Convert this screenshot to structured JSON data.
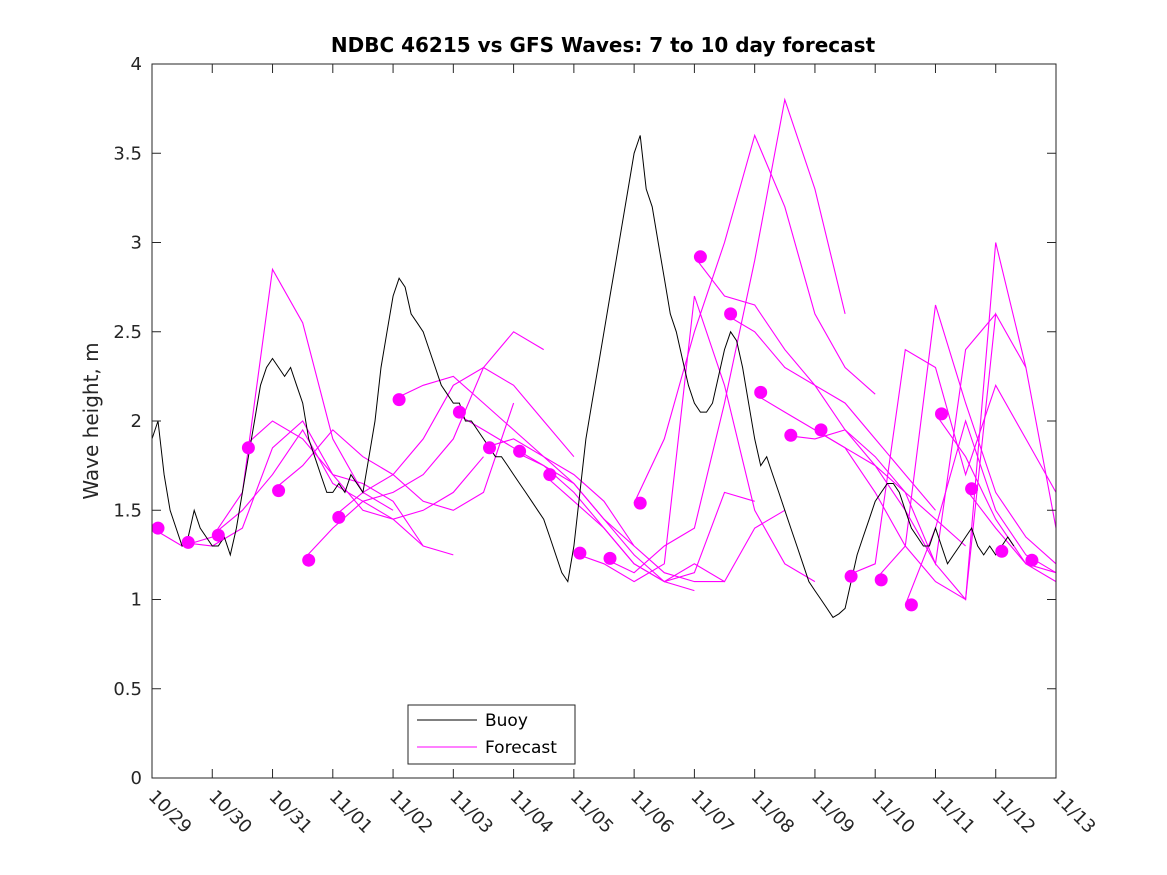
{
  "chart_data": {
    "type": "line",
    "title": "NDBC 46215 vs GFS Waves: 7 to 10 day forecast",
    "xlabel": "",
    "ylabel": "Wave height, m",
    "xlim": [
      0,
      15
    ],
    "ylim": [
      0,
      4
    ],
    "x_unit": "days since 10/29",
    "x_tick_values": [
      0,
      1,
      2,
      3,
      4,
      5,
      6,
      7,
      8,
      9,
      10,
      11,
      12,
      13,
      14,
      15
    ],
    "x_tick_labels": [
      "10/29",
      "10/30",
      "10/31",
      "11/01",
      "11/02",
      "11/03",
      "11/04",
      "11/05",
      "11/06",
      "11/07",
      "11/08",
      "11/09",
      "11/10",
      "11/11",
      "11/12",
      "11/13"
    ],
    "y_tick_values": [
      0,
      0.5,
      1,
      1.5,
      2,
      2.5,
      3,
      3.5,
      4
    ],
    "y_tick_labels": [
      "0",
      "0.5",
      "1",
      "1.5",
      "2",
      "2.5",
      "3",
      "3.5",
      "4"
    ],
    "legend": {
      "position": "bottom-center",
      "entries": [
        {
          "label": "Buoy",
          "color": "#000000"
        },
        {
          "label": "Forecast",
          "color": "#ff00ff"
        }
      ]
    },
    "series": [
      {
        "name": "Buoy",
        "color": "#000000",
        "x": [
          0,
          0.1,
          0.2,
          0.3,
          0.4,
          0.5,
          0.6,
          0.7,
          0.8,
          0.9,
          1.0,
          1.1,
          1.2,
          1.3,
          1.4,
          1.5,
          1.6,
          1.7,
          1.8,
          1.9,
          2.0,
          2.1,
          2.2,
          2.3,
          2.4,
          2.5,
          2.6,
          2.7,
          2.8,
          2.9,
          3.0,
          3.1,
          3.2,
          3.3,
          3.4,
          3.5,
          3.6,
          3.7,
          3.8,
          3.9,
          4.0,
          4.1,
          4.2,
          4.3,
          4.4,
          4.5,
          4.6,
          4.7,
          4.8,
          4.9,
          5.0,
          5.1,
          5.2,
          5.3,
          5.4,
          5.5,
          5.6,
          5.7,
          5.8,
          5.9,
          6.0,
          6.1,
          6.2,
          6.3,
          6.4,
          6.5,
          6.6,
          6.7,
          6.8,
          6.9,
          7.0,
          7.1,
          7.2,
          7.3,
          7.4,
          7.5,
          7.6,
          7.7,
          7.8,
          7.9,
          8.0,
          8.1,
          8.2,
          8.3,
          8.4,
          8.5,
          8.6,
          8.7,
          8.8,
          8.9,
          9.0,
          9.1,
          9.2,
          9.3,
          9.4,
          9.5,
          9.6,
          9.7,
          9.8,
          9.9,
          10.0,
          10.1,
          10.2,
          10.3,
          10.4,
          10.5,
          10.6,
          10.7,
          10.8,
          10.9,
          11.0,
          11.1,
          11.2,
          11.3,
          11.4,
          11.5,
          11.6,
          11.7,
          11.8,
          11.9,
          12.0,
          12.1,
          12.2,
          12.3,
          12.4,
          12.5,
          12.6,
          12.7,
          12.8,
          12.9,
          13.0,
          13.1,
          13.2,
          13.3,
          13.4,
          13.5,
          13.6,
          13.7,
          13.8,
          13.9,
          14.0,
          14.1,
          14.2,
          14.3
        ],
        "values": [
          1.9,
          2.0,
          1.7,
          1.5,
          1.4,
          1.3,
          1.35,
          1.5,
          1.4,
          1.35,
          1.3,
          1.3,
          1.35,
          1.25,
          1.4,
          1.6,
          1.8,
          2.0,
          2.2,
          2.3,
          2.35,
          2.3,
          2.25,
          2.3,
          2.2,
          2.1,
          1.9,
          1.8,
          1.7,
          1.6,
          1.6,
          1.65,
          1.6,
          1.7,
          1.65,
          1.6,
          1.8,
          2.0,
          2.3,
          2.5,
          2.7,
          2.8,
          2.75,
          2.6,
          2.55,
          2.5,
          2.4,
          2.3,
          2.2,
          2.15,
          2.1,
          2.1,
          2.0,
          2.0,
          1.95,
          1.9,
          1.85,
          1.8,
          1.8,
          1.75,
          1.7,
          1.65,
          1.6,
          1.55,
          1.5,
          1.45,
          1.35,
          1.25,
          1.15,
          1.1,
          1.3,
          1.6,
          1.9,
          2.1,
          2.3,
          2.5,
          2.7,
          2.9,
          3.1,
          3.3,
          3.5,
          3.6,
          3.3,
          3.2,
          3.0,
          2.8,
          2.6,
          2.5,
          2.35,
          2.2,
          2.1,
          2.05,
          2.05,
          2.1,
          2.25,
          2.4,
          2.5,
          2.45,
          2.3,
          2.1,
          1.9,
          1.75,
          1.8,
          1.7,
          1.6,
          1.5,
          1.4,
          1.3,
          1.2,
          1.1,
          1.05,
          1.0,
          0.95,
          0.9,
          0.92,
          0.95,
          1.1,
          1.25,
          1.35,
          1.45,
          1.55,
          1.6,
          1.65,
          1.65,
          1.6,
          1.5,
          1.4,
          1.35,
          1.3,
          1.3,
          1.4,
          1.3,
          1.2,
          1.25,
          1.3,
          1.35,
          1.4,
          1.3,
          1.25,
          1.3,
          1.25,
          1.3,
          1.35,
          1.3
        ]
      },
      {
        "name": "Forecast",
        "color": "#ff00ff",
        "lines": [
          {
            "x": [
              0,
              0.5,
              1.0,
              1.5,
              2.0,
              2.5,
              3.0,
              3.5,
              4.0
            ],
            "values": [
              1.4,
              1.3,
              1.35,
              1.6,
              2.85,
              2.55,
              1.9,
              1.6,
              1.5
            ]
          },
          {
            "x": [
              0.5,
              1.0,
              1.5,
              2.0,
              2.5,
              3.0,
              3.5,
              4.0,
              4.5
            ],
            "values": [
              1.32,
              1.3,
              1.4,
              1.85,
              2.0,
              1.7,
              1.65,
              1.55,
              1.3
            ]
          },
          {
            "x": [
              1.0,
              1.5,
              2.0,
              2.5,
              3.0,
              3.5,
              4.0,
              4.5,
              5.0
            ],
            "values": [
              1.36,
              1.5,
              1.7,
              1.95,
              1.65,
              1.55,
              1.45,
              1.3,
              1.25
            ]
          },
          {
            "x": [
              1.5,
              2.0,
              2.5,
              3.0,
              3.5,
              4.0,
              4.5,
              5.0,
              5.5
            ],
            "values": [
              1.85,
              2.0,
              1.9,
              1.7,
              1.5,
              1.45,
              1.5,
              1.6,
              1.8
            ]
          },
          {
            "x": [
              2.0,
              2.5,
              3.0,
              3.5,
              4.0,
              4.5,
              5.0,
              5.5,
              6.0
            ],
            "values": [
              1.61,
              1.75,
              1.95,
              1.8,
              1.7,
              1.55,
              1.5,
              1.6,
              2.1
            ]
          },
          {
            "x": [
              2.5,
              3.0,
              3.5,
              4.0,
              4.5,
              5.0,
              5.5,
              6.0,
              6.5
            ],
            "values": [
              1.22,
              1.4,
              1.55,
              1.6,
              1.7,
              1.9,
              2.3,
              2.5,
              2.4
            ]
          },
          {
            "x": [
              3.0,
              3.5,
              4.0,
              4.5,
              5.0,
              5.5,
              6.0,
              6.5,
              7.0
            ],
            "values": [
              1.46,
              1.6,
              1.7,
              1.9,
              2.2,
              2.3,
              2.2,
              2.0,
              1.8
            ]
          },
          {
            "x": [
              4.0,
              4.5,
              5.0,
              5.5,
              6.0,
              6.5,
              7.0,
              7.5,
              8.0
            ],
            "values": [
              2.12,
              2.2,
              2.25,
              2.1,
              1.95,
              1.8,
              1.7,
              1.55,
              1.3
            ]
          },
          {
            "x": [
              5.0,
              5.5,
              6.0,
              6.5,
              7.0,
              7.5,
              8.0,
              8.5,
              9.0
            ],
            "values": [
              2.05,
              1.95,
              1.85,
              1.75,
              1.6,
              1.4,
              1.2,
              1.1,
              1.05
            ]
          },
          {
            "x": [
              5.5,
              6.0,
              6.5,
              7.0,
              7.5,
              8.0,
              8.5,
              9.0,
              9.5
            ],
            "values": [
              1.85,
              1.9,
              1.8,
              1.65,
              1.45,
              1.3,
              1.15,
              1.1,
              1.1
            ]
          },
          {
            "x": [
              6.0,
              6.5,
              7.0,
              7.5,
              8.0,
              8.5,
              9.0,
              9.5,
              10.0
            ],
            "values": [
              1.83,
              1.75,
              1.65,
              1.45,
              1.25,
              1.1,
              1.15,
              1.6,
              1.55
            ]
          },
          {
            "x": [
              6.5,
              7.0,
              7.5,
              8.0,
              8.5,
              9.0,
              9.5,
              10.0,
              10.5
            ],
            "values": [
              1.7,
              1.55,
              1.4,
              1.2,
              1.1,
              1.2,
              1.1,
              1.4,
              1.5
            ]
          },
          {
            "x": [
              7.0,
              7.5,
              8.0,
              8.5,
              9.0,
              9.5,
              10.0,
              10.5,
              11.0
            ],
            "values": [
              1.26,
              1.2,
              1.1,
              1.2,
              2.7,
              2.2,
              1.5,
              1.2,
              1.1
            ]
          },
          {
            "x": [
              7.5,
              8.0,
              8.5,
              9.0,
              9.5,
              10.0,
              10.5,
              11.0,
              11.5
            ],
            "values": [
              1.23,
              1.15,
              1.3,
              1.4,
              2.1,
              2.9,
              3.8,
              3.3,
              2.6
            ]
          },
          {
            "x": [
              8.0,
              8.5,
              9.0,
              9.5,
              10.0,
              10.5,
              11.0,
              11.5,
              12.0
            ],
            "values": [
              1.54,
              1.9,
              2.5,
              3.0,
              3.6,
              3.2,
              2.6,
              2.3,
              2.15
            ]
          },
          {
            "x": [
              9.0,
              9.5,
              10.0,
              10.5,
              11.0,
              11.5,
              12.0,
              12.5,
              13.0
            ],
            "values": [
              2.92,
              2.7,
              2.65,
              2.4,
              2.2,
              2.1,
              1.9,
              1.7,
              1.5
            ]
          },
          {
            "x": [
              9.5,
              10.0,
              10.5,
              11.0,
              11.5,
              12.0,
              12.5,
              13.0,
              13.5
            ],
            "values": [
              2.6,
              2.5,
              2.3,
              2.2,
              1.95,
              1.8,
              1.6,
              1.45,
              1.3
            ]
          },
          {
            "x": [
              10.0,
              10.5,
              11.0,
              11.5,
              12.0,
              12.5,
              13.0,
              13.5,
              14.0
            ],
            "values": [
              2.15,
              2.05,
              1.95,
              1.85,
              1.75,
              1.6,
              1.2,
              2.4,
              2.6
            ]
          },
          {
            "x": [
              10.5,
              11.0,
              11.5,
              12.0,
              12.5,
              13.0,
              13.5,
              14.0,
              14.5
            ],
            "values": [
              1.92,
              1.9,
              1.95,
              1.75,
              1.5,
              1.2,
              1.0,
              2.6,
              2.3
            ]
          },
          {
            "x": [
              11.0,
              11.5,
              12.0,
              12.5,
              13.0,
              13.5,
              14.0,
              14.5,
              15.0
            ],
            "values": [
              1.95,
              1.85,
              1.6,
              1.3,
              1.1,
              1.0,
              3.0,
              2.3,
              1.4
            ]
          },
          {
            "x": [
              11.5,
              12.0,
              12.5,
              13.0,
              13.5,
              14.0,
              14.5,
              15.0
            ],
            "values": [
              1.13,
              1.2,
              2.4,
              2.3,
              1.7,
              2.2,
              1.9,
              1.6
            ]
          },
          {
            "x": [
              12.0,
              12.5,
              13.0,
              13.5,
              14.0,
              14.5,
              15.0
            ],
            "values": [
              1.11,
              1.3,
              2.65,
              2.1,
              1.6,
              1.35,
              1.2
            ]
          },
          {
            "x": [
              12.5,
              13.0,
              13.5,
              14.0,
              14.5,
              15.0
            ],
            "values": [
              0.97,
              1.4,
              2.0,
              1.5,
              1.25,
              1.15
            ]
          },
          {
            "x": [
              13.0,
              13.5,
              14.0,
              14.5,
              15.0
            ],
            "values": [
              2.04,
              1.8,
              1.45,
              1.2,
              1.1
            ]
          },
          {
            "x": [
              13.5,
              14.0,
              14.5,
              15.0
            ],
            "values": [
              1.62,
              1.4,
              1.2,
              1.15
            ]
          }
        ],
        "markers": {
          "x": [
            0.1,
            0.6,
            1.1,
            1.6,
            2.1,
            2.6,
            3.1,
            4.1,
            5.1,
            5.6,
            6.1,
            6.6,
            7.1,
            7.6,
            8.1,
            9.1,
            9.6,
            10.1,
            10.6,
            11.1,
            11.6,
            12.1,
            12.6,
            13.1,
            13.6,
            14.1,
            14.6
          ],
          "values": [
            1.4,
            1.32,
            1.36,
            1.85,
            1.61,
            1.22,
            1.46,
            2.12,
            2.05,
            1.85,
            1.83,
            1.7,
            1.26,
            1.23,
            1.54,
            2.92,
            2.6,
            2.16,
            1.92,
            1.95,
            1.13,
            1.11,
            0.97,
            2.04,
            1.62,
            1.27,
            1.22
          ]
        }
      }
    ]
  }
}
